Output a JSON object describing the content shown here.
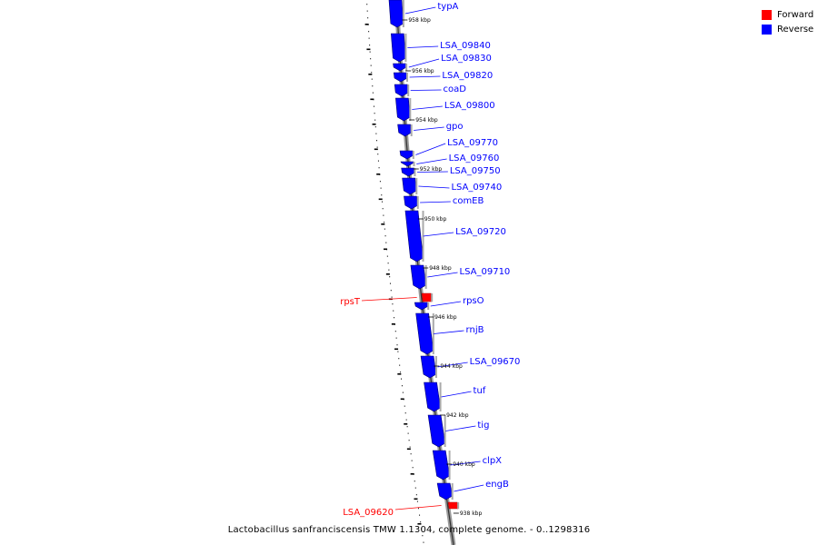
{
  "legend": {
    "forward": {
      "label": "Forward",
      "color": "#ff0000"
    },
    "reverse": {
      "label": "Reverse",
      "color": "#0000ff"
    }
  },
  "caption": "Lactobacillus sanfranciscensis TMW 1.1304, complete genome. - 0..1298316",
  "scale_ticks": [
    {
      "kbp": 958,
      "label": "958 kbp"
    },
    {
      "kbp": 956,
      "label": "956 kbp"
    },
    {
      "kbp": 954,
      "label": "954 kbp"
    },
    {
      "kbp": 952,
      "label": "952 kbp"
    },
    {
      "kbp": 950,
      "label": "950 kbp"
    },
    {
      "kbp": 948,
      "label": "948 kbp"
    },
    {
      "kbp": 946,
      "label": "946 kbp"
    },
    {
      "kbp": 944,
      "label": "944 kbp"
    },
    {
      "kbp": 942,
      "label": "942 kbp"
    },
    {
      "kbp": 940,
      "label": "940 kbp"
    },
    {
      "kbp": 938,
      "label": "938 kbp"
    }
  ],
  "genes": [
    {
      "name": "typA",
      "strand": "reverse"
    },
    {
      "name": "LSA_09840",
      "strand": "reverse"
    },
    {
      "name": "LSA_09830",
      "strand": "reverse"
    },
    {
      "name": "LSA_09820",
      "strand": "reverse"
    },
    {
      "name": "coaD",
      "strand": "reverse"
    },
    {
      "name": "LSA_09800",
      "strand": "reverse"
    },
    {
      "name": "gpo",
      "strand": "reverse"
    },
    {
      "name": "LSA_09770",
      "strand": "reverse"
    },
    {
      "name": "LSA_09760",
      "strand": "reverse"
    },
    {
      "name": "LSA_09750",
      "strand": "reverse"
    },
    {
      "name": "LSA_09740",
      "strand": "reverse"
    },
    {
      "name": "comEB",
      "strand": "reverse"
    },
    {
      "name": "LSA_09720",
      "strand": "reverse"
    },
    {
      "name": "LSA_09710",
      "strand": "reverse"
    },
    {
      "name": "rpsT",
      "strand": "forward"
    },
    {
      "name": "rpsO",
      "strand": "reverse"
    },
    {
      "name": "rnjB",
      "strand": "reverse"
    },
    {
      "name": "LSA_09670",
      "strand": "reverse"
    },
    {
      "name": "tuf",
      "strand": "reverse"
    },
    {
      "name": "tig",
      "strand": "reverse"
    },
    {
      "name": "clpX",
      "strand": "reverse"
    },
    {
      "name": "engB",
      "strand": "reverse"
    },
    {
      "name": "LSA_09620",
      "strand": "forward"
    }
  ]
}
